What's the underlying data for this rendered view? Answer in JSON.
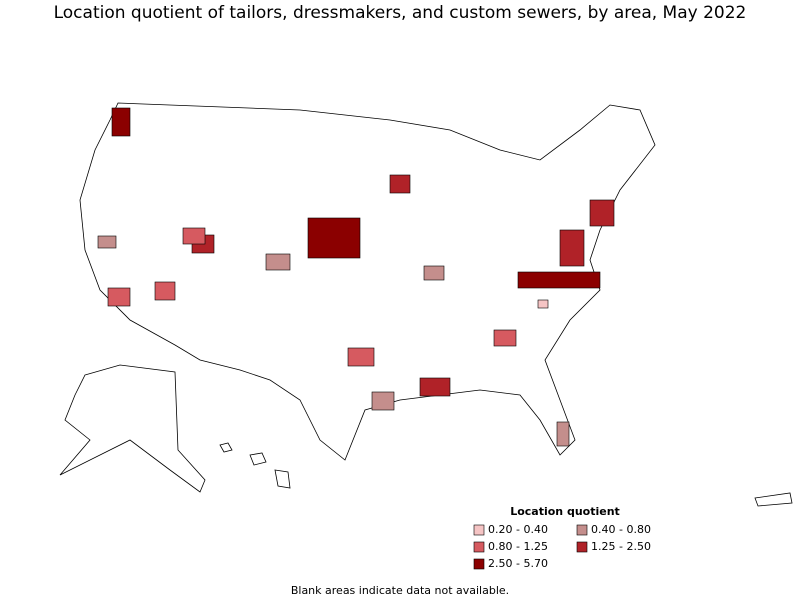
{
  "title": "Location quotient of tailors, dressmakers, and custom sewers, by area, May 2022",
  "legend": {
    "title": "Location quotient",
    "items": [
      {
        "label": "0.20 - 0.40",
        "color": "#f5c4c4"
      },
      {
        "label": "0.40 - 0.80",
        "color": "#c48e8c"
      },
      {
        "label": "0.80 - 1.25",
        "color": "#d65a60"
      },
      {
        "label": "1.25 - 2.50",
        "color": "#b02228"
      },
      {
        "label": "2.50 - 5.70",
        "color": "#8b0000"
      }
    ]
  },
  "footnote": "Blank areas indicate data not available."
}
